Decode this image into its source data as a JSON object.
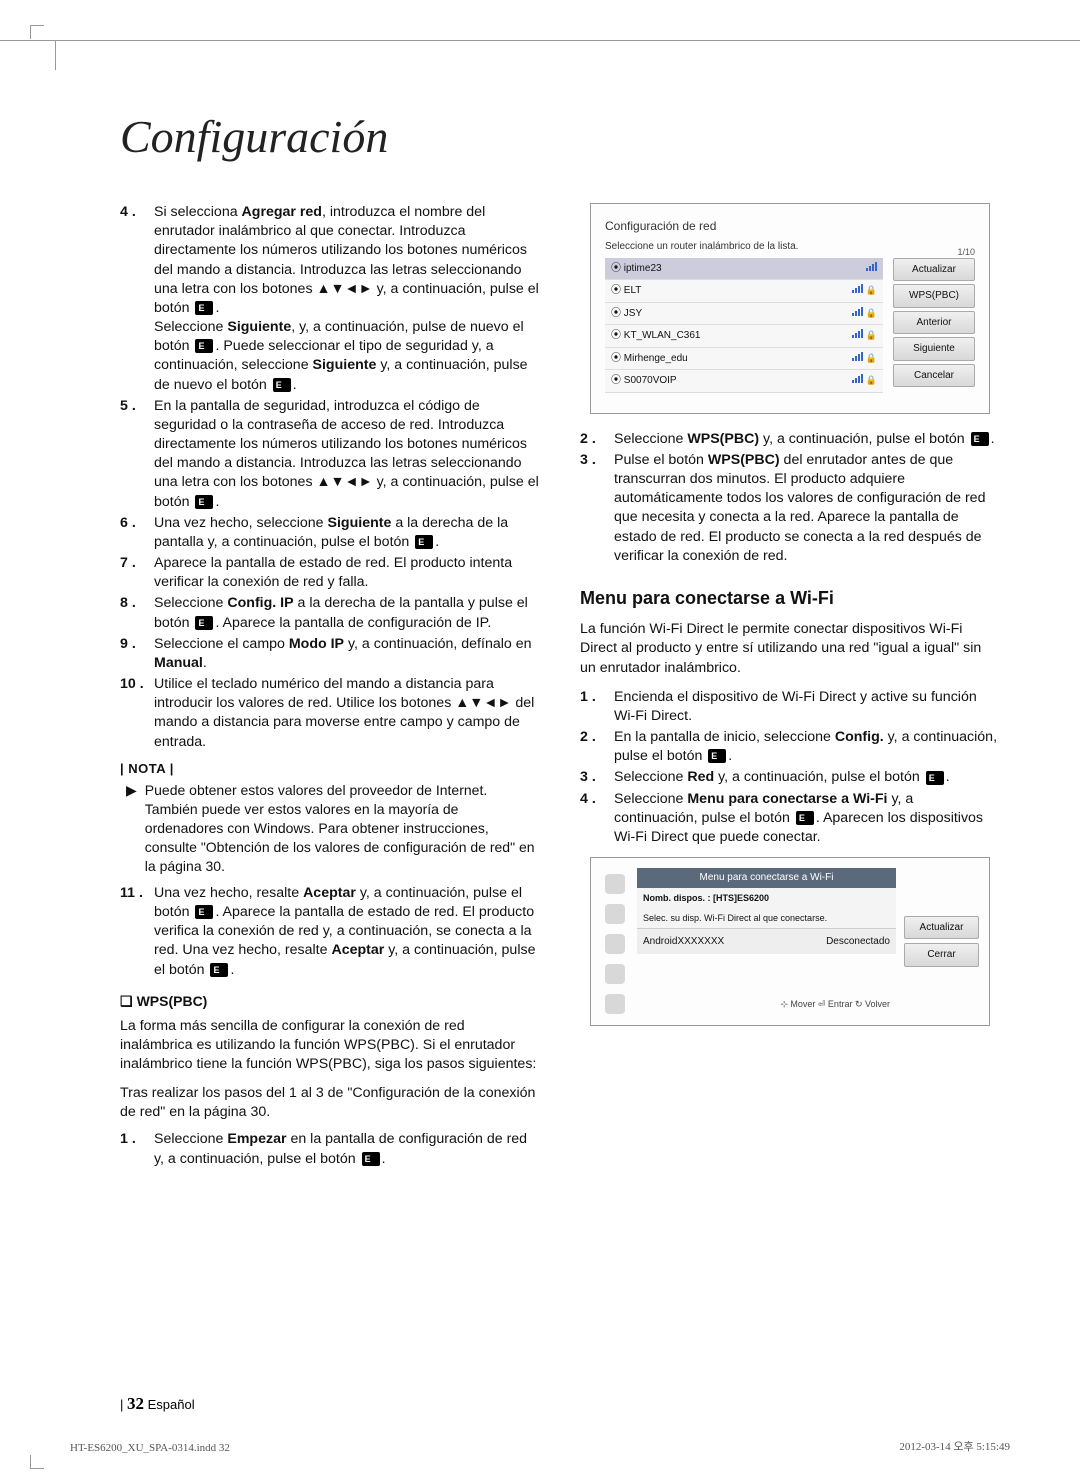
{
  "title": "Configuración",
  "left": {
    "s4a": "Si selecciona <b>Agregar red</b>, introduzca el nombre del enrutador inalámbrico al que conectar. Introduzca directamente los números utilizando los botones numéricos del mando a distancia. Introduzca las letras seleccionando una letra con los botones ▲▼◄► y, a continuación, pulse el botón ",
    "s4b": "Seleccione <b>Siguiente</b>, y, a continuación, pulse de nuevo el botón ",
    "s4c": ". Puede seleccionar el tipo de seguridad y, a continuación, seleccione <b>Siguiente</b> y, a continuación, pulse de nuevo el botón ",
    "s5": "En la pantalla de seguridad, introduzca el código de seguridad o la contraseña de acceso de red. Introduzca directamente los números utilizando los botones numéricos del mando a distancia. Introduzca las letras seleccionando una letra con los botones ▲▼◄► y, a continuación, pulse el botón ",
    "s6": "Una vez hecho, seleccione <b>Siguiente</b> a la derecha de la pantalla y, a continuación, pulse el botón ",
    "s7": "Aparece la pantalla de estado de red. El producto intenta verificar la conexión de red y falla.",
    "s8": "Seleccione <b>Config. IP</b> a la derecha de la pantalla y pulse el botón ",
    "s8b": ". Aparece la pantalla de configuración de IP.",
    "s9": "Seleccione el campo <b>Modo IP</b> y, a continuación, defínalo en <b>Manual</b>.",
    "s10": "Utilice el teclado numérico del mando a distancia para introducir los valores de red. Utilice los botones ▲▼◄► del mando a distancia para moverse entre campo y campo de entrada.",
    "noteLabel": "| NOTA |",
    "note": "Puede obtener estos valores del proveedor de Internet. También puede ver estos valores en la mayoría de ordenadores con Windows. Para obtener instrucciones, consulte \"Obtención de los valores de configuración de red\" en la página 30.",
    "s11a": "Una vez hecho, resalte  <b>Aceptar</b> y, a continuación, pulse el botón ",
    "s11b": ". Aparece la pantalla de estado de red. El producto verifica la conexión de red y, a continuación, se conecta a la red. Una vez hecho, resalte <b>Aceptar</b> y, a continuación, pulse el botón ",
    "wpsHead": "WPS(PBC)",
    "wps1": "La forma más sencilla de configurar la conexión de red inalámbrica es utilizando la función WPS(PBC). Si el enrutador inalámbrico tiene la función WPS(PBC), siga los pasos siguientes:",
    "wps2": "Tras realizar los pasos del 1 al 3 de \"Configuración de la conexión de red\" en la página 30.",
    "wpsS1": "Seleccione <b>Empezar</b> en la pantalla de configuración de red y, a continuación, pulse el botón "
  },
  "netfig": {
    "title": "Configuración de red",
    "sub": "Seleccione un router inalámbrico de la lista.",
    "count": "1/10",
    "rows": [
      "iptime23",
      "ELT",
      "JSY",
      "KT_WLAN_C361",
      "Mirhenge_edu",
      "S0070VOIP"
    ],
    "btns": [
      "Actualizar",
      "WPS(PBC)",
      "Anterior",
      "Siguiente",
      "Cancelar"
    ]
  },
  "right": {
    "s2": "Seleccione <b>WPS(PBC)</b> y, a continuación, pulse el botón ",
    "s3": "Pulse el botón <b>WPS(PBC)</b> del enrutador antes de que transcurran dos minutos. El producto adquiere automáticamente todos los valores de configuración de red que necesita y conecta a la red. Aparece la pantalla de estado de red. El producto se conecta a la red después de verificar la conexión de red.",
    "h2": "Menu para conectarse a Wi-Fi",
    "p": "La función Wi-Fi Direct le permite conectar dispositivos Wi-Fi Direct al producto y entre sí utilizando una red \"igual a igual\" sin un enrutador inalámbrico.",
    "m1": "Encienda el dispositivo de Wi-Fi Direct y active su función Wi-Fi Direct.",
    "m2": "En la pantalla de inicio, seleccione <b>Config.</b> y, a continuación, pulse el botón ",
    "m3": "Seleccione <b>Red</b> y, a continuación, pulse el botón ",
    "m4a": "Seleccione <b>Menu para conectarse a Wi-Fi</b> y, a continuación, pulse el botón ",
    "m4b": ". Aparecen los dispositivos Wi-Fi Direct que puede conectar."
  },
  "wififig": {
    "title": "Menu para conectarse a Wi-Fi",
    "name": "Nomb. dispos. : [HTS]ES6200",
    "sel": "Selec. su disp. Wi-Fi Direct al que conectarse.",
    "dev": "AndroidXXXXXXX",
    "status": "Desconectado",
    "btns": [
      "Actualizar",
      "Cerrar"
    ],
    "foot": "⊹ Mover   ⏎ Entrar   ↻ Volver"
  },
  "foot": {
    "num": "32",
    "lang": "Español"
  },
  "indd": "HT-ES6200_XU_SPA-0314.indd   32",
  "ts": "2012-03-14   오후 5:15:49"
}
